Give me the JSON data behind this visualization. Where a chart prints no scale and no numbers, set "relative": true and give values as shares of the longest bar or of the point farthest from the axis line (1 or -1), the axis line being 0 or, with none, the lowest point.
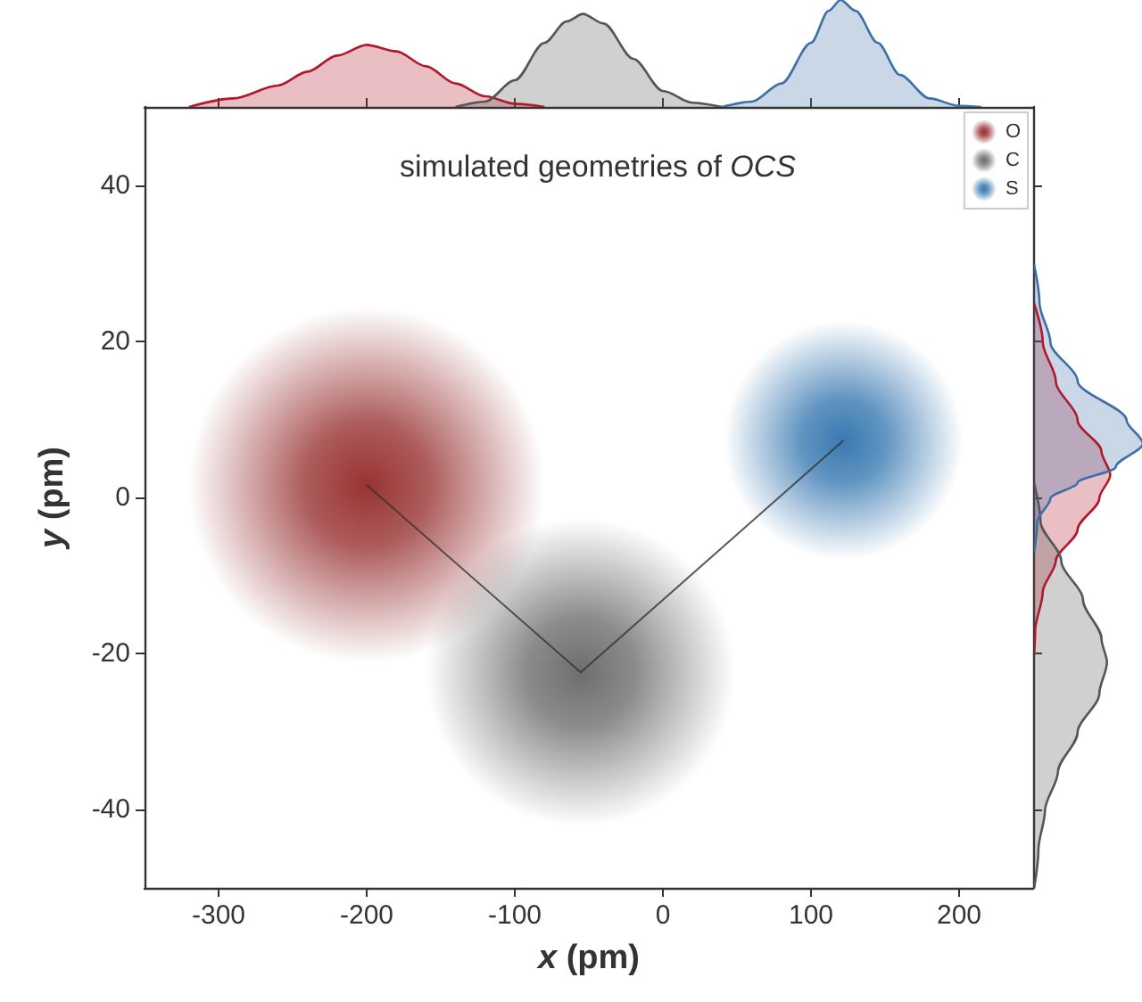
{
  "chart_data": [
    {
      "type": "area",
      "relative": true,
      "xlim": [
        -350,
        250
      ],
      "series": [
        {
          "color": "#b2182b",
          "x": [
            -320,
            -290,
            -260,
            -240,
            -220,
            -200,
            -180,
            -160,
            -140,
            -120,
            -100,
            -80
          ],
          "values": [
            0,
            0.08,
            0.2,
            0.33,
            0.48,
            0.58,
            0.52,
            0.38,
            0.22,
            0.1,
            0.03,
            0
          ]
        },
        {
          "color": "#555555",
          "x": [
            -140,
            -120,
            -100,
            -80,
            -65,
            -54,
            -40,
            -20,
            0,
            20,
            40
          ],
          "values": [
            0,
            0.05,
            0.25,
            0.6,
            0.8,
            0.87,
            0.78,
            0.45,
            0.15,
            0.04,
            0
          ]
        },
        {
          "color": "#3c6ea8",
          "x": [
            40,
            60,
            80,
            100,
            112,
            120,
            130,
            145,
            160,
            180,
            200,
            215
          ],
          "values": [
            0,
            0.05,
            0.22,
            0.6,
            0.9,
            1,
            0.9,
            0.6,
            0.3,
            0.08,
            0.01,
            0
          ]
        }
      ]
    },
    {
      "type": "bubble",
      "title": "simulated geometries of OCS",
      "xlabel": "x (pm)",
      "ylabel": "y (pm)",
      "xlim": [
        -350,
        250
      ],
      "ylim": [
        -50,
        50
      ],
      "xticks": [
        -300,
        -200,
        -100,
        0,
        100,
        200
      ],
      "yticks": [
        -40,
        -20,
        0,
        20,
        40
      ],
      "grid": false,
      "legend": "top right",
      "series": [
        {
          "name": "O",
          "color": "#7f0000",
          "x": [
            -200
          ],
          "values": [
            1.6
          ],
          "sizes": [
            1
          ]
        },
        {
          "name": "C",
          "color": "#4a4a4a",
          "x": [
            -55.5
          ],
          "values": [
            -22.4
          ],
          "sizes": [
            0.75
          ]
        },
        {
          "name": "S",
          "color": "#08589e",
          "x": [
            122
          ],
          "values": [
            7.3
          ],
          "sizes": [
            0.45
          ]
        },
        {
          "type": "line",
          "color": "#333333",
          "marker": "none",
          "x": [
            -200,
            -55.5,
            122
          ],
          "values": [
            1.6,
            -22.4,
            7.3
          ]
        }
      ]
    },
    {
      "type": "area",
      "orientation": "horizontal",
      "relative": true,
      "ylim": [
        -50,
        50
      ],
      "series": [
        {
          "color": "#b2182b",
          "x": [
            25,
            20,
            15,
            10,
            6,
            3,
            0,
            -4,
            -8,
            -12,
            -17,
            -20
          ],
          "values": [
            0,
            0.08,
            0.2,
            0.4,
            0.62,
            0.7,
            0.6,
            0.4,
            0.2,
            0.08,
            0.01,
            0
          ]
        },
        {
          "color": "#555555",
          "x": [
            2,
            -3,
            -8,
            -13,
            -18,
            -21,
            -25,
            -30,
            -35,
            -40,
            -45,
            -50
          ],
          "values": [
            0,
            0.06,
            0.25,
            0.45,
            0.62,
            0.67,
            0.6,
            0.4,
            0.22,
            0.1,
            0.04,
            0
          ]
        },
        {
          "color": "#3c6ea8",
          "x": [
            30,
            25,
            20,
            15,
            10,
            7,
            4,
            2,
            0,
            -3,
            -7
          ],
          "values": [
            0,
            0.05,
            0.15,
            0.4,
            0.85,
            1,
            0.75,
            0.4,
            0.15,
            0.03,
            0
          ]
        }
      ]
    }
  ]
}
